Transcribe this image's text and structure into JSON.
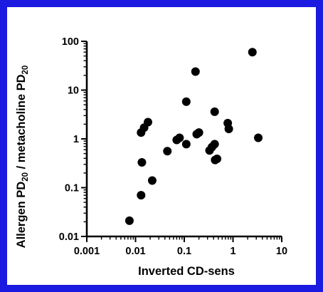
{
  "chart_data": {
    "type": "scatter",
    "title": "",
    "xlabel": "Inverted CD-sens",
    "ylabel": {
      "parts": [
        {
          "text": "Allergen PD"
        },
        {
          "text": "20",
          "sub": true
        },
        {
          "text": " / metacholine PD"
        },
        {
          "text": "20",
          "sub": true
        }
      ]
    },
    "xscale": "log",
    "yscale": "log",
    "xlim": [
      0.001,
      10
    ],
    "ylim": [
      0.01,
      100
    ],
    "xticks": [
      {
        "value": 0.001,
        "label": "0.001"
      },
      {
        "value": 0.01,
        "label": "0.01"
      },
      {
        "value": 0.1,
        "label": "0.1"
      },
      {
        "value": 1,
        "label": "1"
      },
      {
        "value": 10,
        "label": "10"
      }
    ],
    "yticks": [
      {
        "value": 0.01,
        "label": "0.01"
      },
      {
        "value": 0.1,
        "label": "0.1"
      },
      {
        "value": 1,
        "label": "1"
      },
      {
        "value": 10,
        "label": "10"
      },
      {
        "value": 100,
        "label": "100"
      }
    ],
    "grid": false,
    "marker_color": "#000000",
    "points": [
      {
        "x": 0.0075,
        "y": 0.021
      },
      {
        "x": 0.013,
        "y": 0.07
      },
      {
        "x": 0.013,
        "y": 1.35
      },
      {
        "x": 0.0135,
        "y": 0.33
      },
      {
        "x": 0.015,
        "y": 1.7
      },
      {
        "x": 0.018,
        "y": 2.2
      },
      {
        "x": 0.022,
        "y": 0.14
      },
      {
        "x": 0.045,
        "y": 0.56
      },
      {
        "x": 0.07,
        "y": 0.95
      },
      {
        "x": 0.08,
        "y": 1.05
      },
      {
        "x": 0.11,
        "y": 0.78
      },
      {
        "x": 0.11,
        "y": 5.8
      },
      {
        "x": 0.17,
        "y": 24
      },
      {
        "x": 0.18,
        "y": 1.25
      },
      {
        "x": 0.2,
        "y": 1.35
      },
      {
        "x": 0.33,
        "y": 0.58
      },
      {
        "x": 0.37,
        "y": 0.68
      },
      {
        "x": 0.42,
        "y": 0.78
      },
      {
        "x": 0.42,
        "y": 3.6
      },
      {
        "x": 0.43,
        "y": 0.37
      },
      {
        "x": 0.47,
        "y": 0.39
      },
      {
        "x": 0.78,
        "y": 2.1
      },
      {
        "x": 0.82,
        "y": 1.6
      },
      {
        "x": 2.5,
        "y": 60
      },
      {
        "x": 3.3,
        "y": 1.05
      }
    ]
  }
}
